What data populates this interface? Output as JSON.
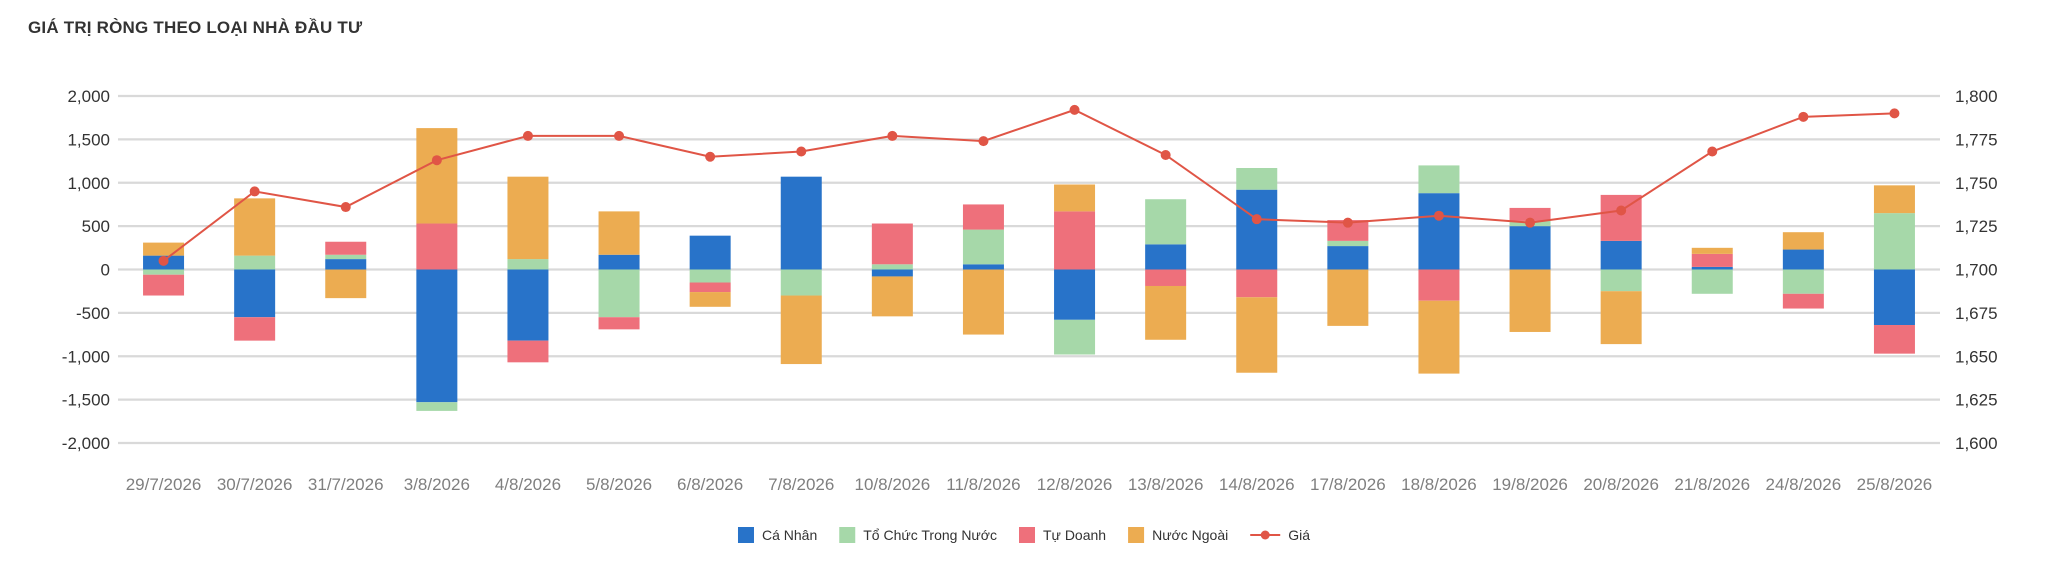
{
  "chart_data": {
    "type": "bar",
    "title": "GIÁ TRỊ RÒNG THEO LOẠI NHÀ ĐẦU TƯ",
    "categories": [
      "29/7/2026",
      "30/7/2026",
      "31/7/2026",
      "3/8/2026",
      "4/8/2026",
      "5/8/2026",
      "6/8/2026",
      "7/8/2026",
      "10/8/2026",
      "11/8/2026",
      "12/8/2026",
      "13/8/2026",
      "14/8/2026",
      "17/8/2026",
      "18/8/2026",
      "19/8/2026",
      "20/8/2026",
      "21/8/2026",
      "24/8/2026",
      "25/8/2026"
    ],
    "series": [
      {
        "name": "Cá Nhân",
        "type": "bar",
        "color": "#2873c9",
        "values": [
          160,
          -550,
          120,
          -1530,
          -820,
          170,
          390,
          1070,
          -80,
          60,
          -580,
          290,
          920,
          270,
          880,
          500,
          330,
          30,
          230,
          -640
        ]
      },
      {
        "name": "Tổ Chức Trong Nước",
        "type": "bar",
        "color": "#a6d8a9",
        "values": [
          -60,
          160,
          50,
          -100,
          120,
          -550,
          -150,
          -300,
          60,
          400,
          -400,
          520,
          250,
          60,
          320,
          60,
          -250,
          -280,
          -280,
          650
        ]
      },
      {
        "name": "Tự Doanh",
        "type": "bar",
        "color": "#ee707b",
        "values": [
          -240,
          -270,
          150,
          530,
          -250,
          -140,
          -110,
          0,
          470,
          290,
          670,
          -190,
          -320,
          240,
          -360,
          150,
          530,
          150,
          -170,
          -330
        ]
      },
      {
        "name": "Nước Ngoài",
        "type": "bar",
        "color": "#ecac51",
        "values": [
          150,
          660,
          -330,
          1100,
          950,
          500,
          -170,
          -790,
          -460,
          -750,
          310,
          -620,
          -870,
          -650,
          -840,
          -720,
          -610,
          70,
          200,
          320
        ]
      },
      {
        "name": "Giá",
        "type": "line",
        "axis": "right",
        "color": "#e05546",
        "values": [
          1705,
          1745,
          1736,
          1763,
          1777,
          1777,
          1765,
          1768,
          1777,
          1774,
          1792,
          1766,
          1729,
          1727,
          1731,
          1727,
          1734,
          1768,
          1788,
          1790
        ]
      }
    ],
    "y_left": {
      "min": -2000,
      "max": 2000,
      "ticks": [
        "2,000",
        "1,500",
        "1,000",
        "500",
        "0",
        "-500",
        "-1,000",
        "-1,500",
        "-2,000"
      ]
    },
    "y_right": {
      "min": 1600,
      "max": 1800,
      "ticks": [
        "1,800",
        "1,775",
        "1,750",
        "1,725",
        "1,700",
        "1,675",
        "1,650",
        "1,625",
        "1,600"
      ]
    },
    "grid": true,
    "legend": "bottom-center"
  }
}
